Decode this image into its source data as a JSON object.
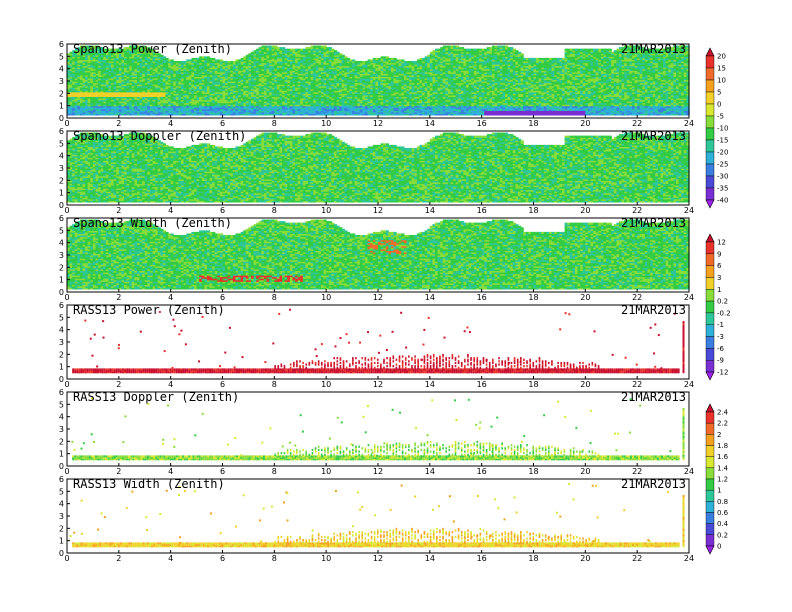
{
  "chart_data": [
    {
      "type": "heatmap",
      "title": "Spano13 Power (Zenith)",
      "date": "21MAR2013",
      "x_ticks": [
        "0",
        "2",
        "4",
        "6",
        "8",
        "10",
        "12",
        "14",
        "16",
        "18",
        "20",
        "22",
        "24"
      ],
      "y_ticks": [
        "0",
        "1",
        "2",
        "3",
        "4",
        "5",
        "6"
      ],
      "xlim": [
        0,
        24
      ],
      "ylim": [
        0,
        6
      ],
      "colorbar_group": 0,
      "style": "dense",
      "base_index": 7
    },
    {
      "type": "heatmap",
      "title": "Spano13 Doppler (Zenith)",
      "date": "21MAR2013",
      "x_ticks": [
        "0",
        "2",
        "4",
        "6",
        "8",
        "10",
        "12",
        "14",
        "16",
        "18",
        "20",
        "22",
        "24"
      ],
      "y_ticks": [
        "0",
        "1",
        "2",
        "3",
        "4",
        "5",
        "6"
      ],
      "xlim": [
        0,
        24
      ],
      "ylim": [
        0,
        6
      ],
      "colorbar_group": 0,
      "style": "dense",
      "base_index": 7
    },
    {
      "type": "heatmap",
      "title": "Spano13 Width (Zenith)",
      "date": "21MAR2013",
      "x_ticks": [
        "0",
        "2",
        "4",
        "6",
        "8",
        "10",
        "12",
        "14",
        "16",
        "18",
        "20",
        "22",
        "24"
      ],
      "y_ticks": [
        "0",
        "1",
        "2",
        "3",
        "4",
        "5",
        "6"
      ],
      "xlim": [
        0,
        24
      ],
      "ylim": [
        0,
        6
      ],
      "colorbar_group": 1,
      "style": "dense",
      "base_index": 6
    },
    {
      "type": "heatmap",
      "title": "RASS13 Power (Zenith)",
      "date": "21MAR2013",
      "x_ticks": [
        "0",
        "2",
        "4",
        "6",
        "8",
        "10",
        "12",
        "14",
        "16",
        "18",
        "20",
        "22",
        "24"
      ],
      "y_ticks": [
        "0",
        "1",
        "2",
        "3",
        "4",
        "5",
        "6"
      ],
      "xlim": [
        0,
        24
      ],
      "ylim": [
        0,
        6
      ],
      "colorbar_group": 1,
      "style": "sparse",
      "base_index": 0
    },
    {
      "type": "heatmap",
      "title": "RASS13 Doppler (Zenith)",
      "date": "21MAR2013",
      "x_ticks": [
        "0",
        "2",
        "4",
        "6",
        "8",
        "10",
        "12",
        "14",
        "16",
        "18",
        "20",
        "22",
        "24"
      ],
      "y_ticks": [
        "0",
        "1",
        "2",
        "3",
        "4",
        "5",
        "6"
      ],
      "xlim": [
        0,
        24
      ],
      "ylim": [
        0,
        6
      ],
      "colorbar_group": 2,
      "style": "sparse",
      "base_index": 6
    },
    {
      "type": "heatmap",
      "title": "RASS13 Width (Zenith)",
      "date": "21MAR2013",
      "x_ticks": [
        "0",
        "2",
        "4",
        "6",
        "8",
        "10",
        "12",
        "14",
        "16",
        "18",
        "20",
        "22",
        "24"
      ],
      "y_ticks": [
        "0",
        "1",
        "2",
        "3",
        "4",
        "5",
        "6"
      ],
      "xlim": [
        0,
        24
      ],
      "ylim": [
        0,
        6
      ],
      "colorbar_group": 2,
      "style": "sparse",
      "base_index": 4
    }
  ],
  "colorbars": [
    {
      "labels": [
        "20",
        "15",
        "10",
        "5",
        "0",
        "-5",
        "-10",
        "-15",
        "-20",
        "-25",
        "-30",
        "-35",
        "-40"
      ],
      "colors": [
        "#c8102e",
        "#e8322b",
        "#f06a2a",
        "#f4a11f",
        "#f2d02a",
        "#d8e830",
        "#88dd3a",
        "#33cc44",
        "#2ec79a",
        "#2fb0d8",
        "#3a7ee0",
        "#4a4ad8",
        "#7a2fd2",
        "#a020f0"
      ]
    },
    {
      "labels": [
        "12",
        "9",
        "6",
        "3",
        "1",
        "0.2",
        "-0.2",
        "-1",
        "-3",
        "-6",
        "-9",
        "-12"
      ],
      "colors": [
        "#c8102e",
        "#e8322b",
        "#f06a2a",
        "#f4a11f",
        "#f2d02a",
        "#88dd3a",
        "#33cc44",
        "#2ec79a",
        "#2fb0d8",
        "#3a7ee0",
        "#4a4ad8",
        "#7a2fd2",
        "#a020f0"
      ]
    },
    {
      "labels": [
        "2.4",
        "2.2",
        "2",
        "1.8",
        "1.6",
        "1.4",
        "1.2",
        "1",
        "0.8",
        "0.6",
        "0.4",
        "0.2",
        "0"
      ],
      "colors": [
        "#c8102e",
        "#e8322b",
        "#f06a2a",
        "#f4a11f",
        "#f2d02a",
        "#d8e830",
        "#88dd3a",
        "#33cc44",
        "#2ec79a",
        "#2fb0d8",
        "#3a7ee0",
        "#4a4ad8",
        "#7a2fd2",
        "#a020f0"
      ]
    }
  ]
}
